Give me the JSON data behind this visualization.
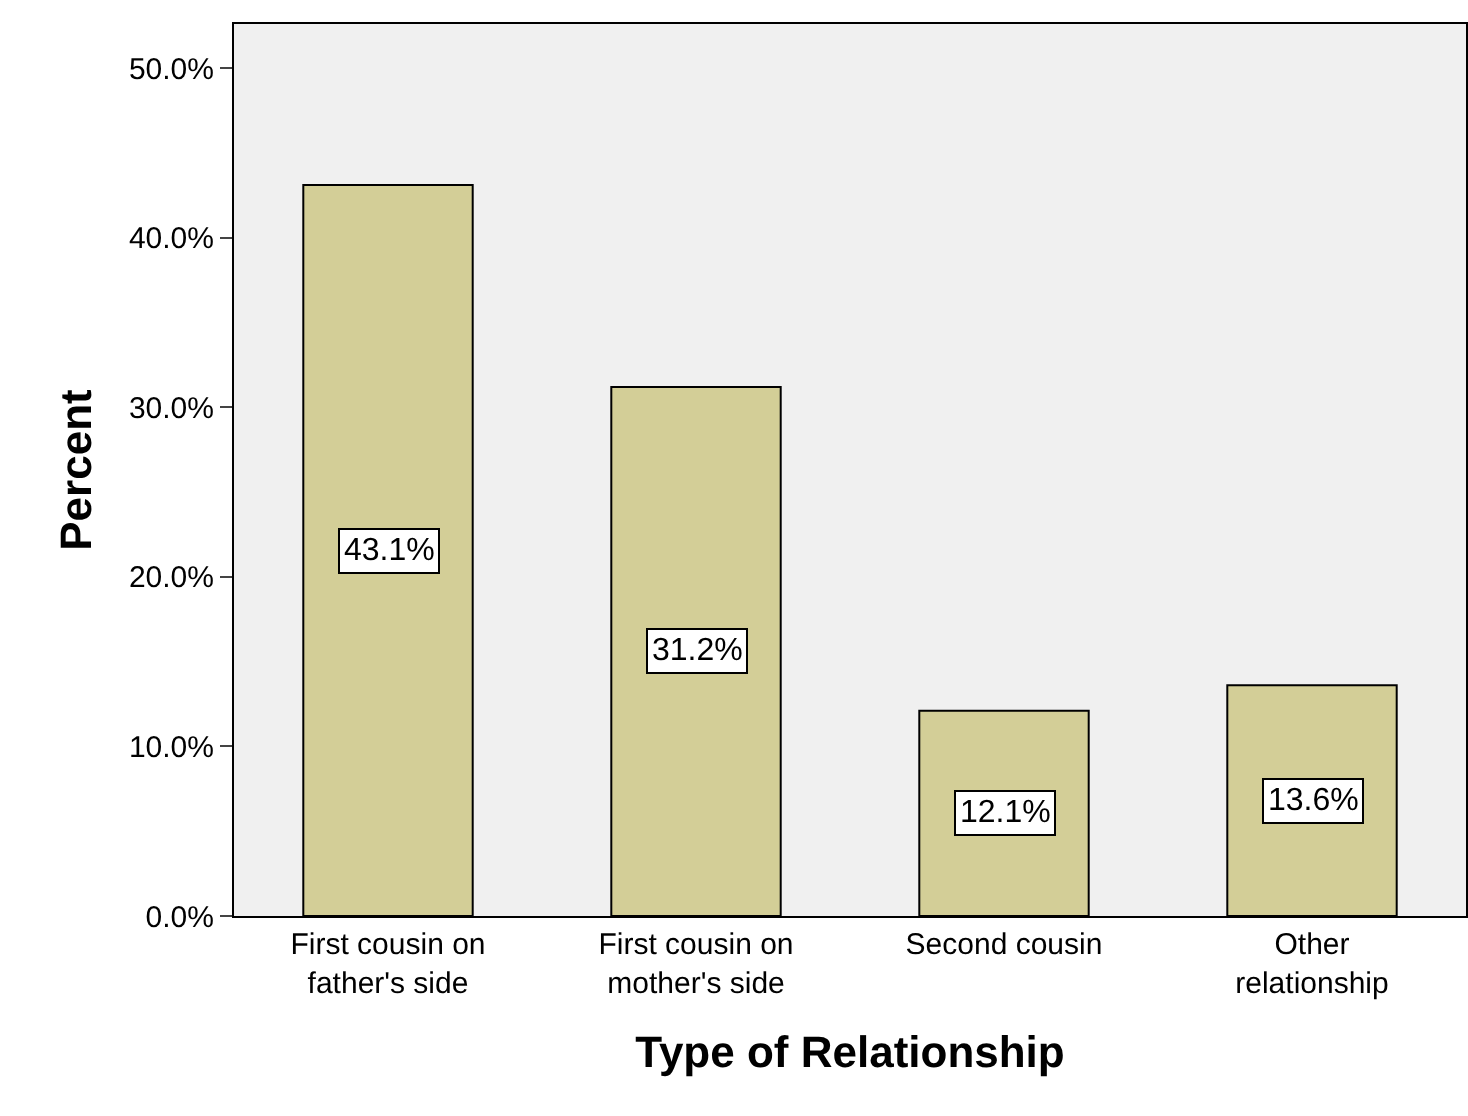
{
  "chart_data": {
    "type": "bar",
    "xlabel": "Type of Relationship",
    "ylabel": "Percent",
    "categories": [
      "First cousin on father's side",
      "First cousin on mother's side",
      "Second cousin",
      "Other relationship"
    ],
    "values": [
      43.1,
      31.2,
      12.1,
      13.6
    ],
    "value_labels": [
      "43.1%",
      "31.2%",
      "12.1%",
      "13.6%"
    ],
    "color": "#d3ce97",
    "ylim": [
      0,
      52.6
    ],
    "yticks": [
      {
        "value": 0,
        "label": "0.0%"
      },
      {
        "value": 10,
        "label": "10.0%"
      },
      {
        "value": 20,
        "label": "20.0%"
      },
      {
        "value": 30,
        "label": "30.0%"
      },
      {
        "value": 40,
        "label": "40.0%"
      },
      {
        "value": 50,
        "label": "50.0%"
      }
    ],
    "grid": false
  }
}
